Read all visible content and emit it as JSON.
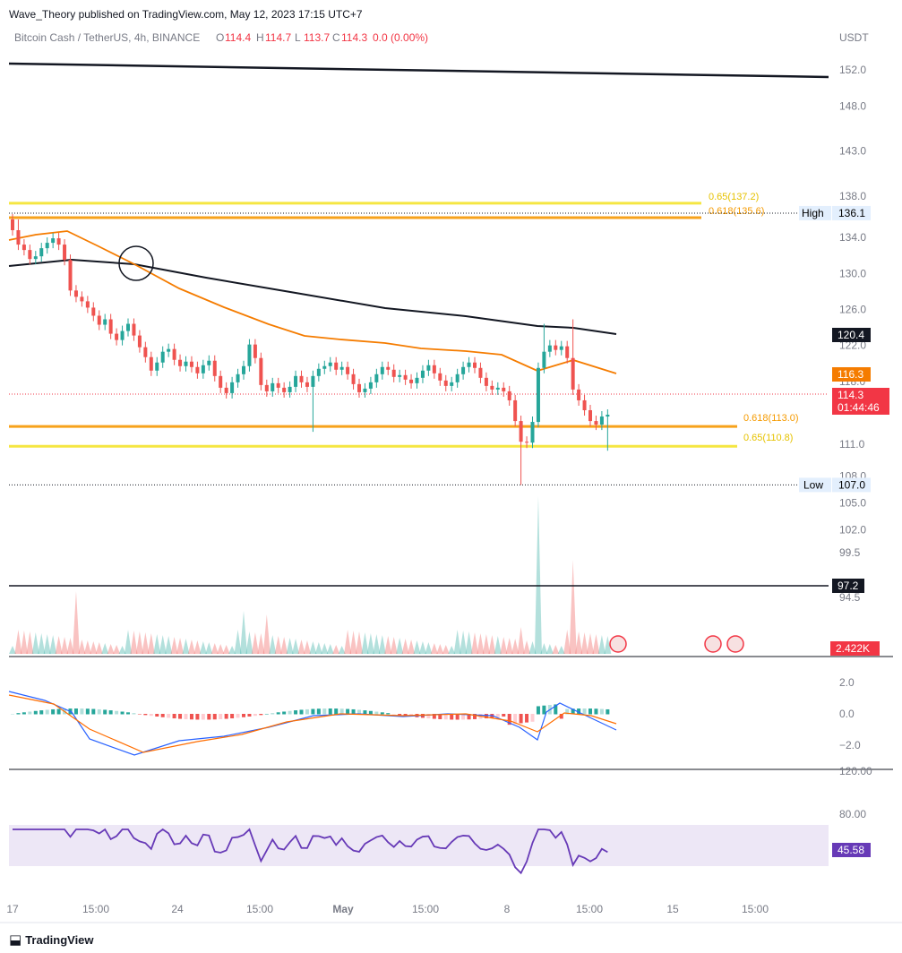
{
  "publisher_line": "Wave_Theory published on TradingView.com, May 12, 2023 17:15 UTC+7",
  "footer_brand": "TradingView",
  "footer_icon": "tradingview-logo-icon",
  "legend": {
    "symbol": "Bitcoin Cash / TetherUS, 4h, BINANCE",
    "o_label": "O",
    "o": "114.4",
    "h_label": "H",
    "h": "114.7",
    "l_label": "L",
    "l": "113.7",
    "c_label": "C",
    "c": "114.3",
    "change": "0.0 (0.00%)"
  },
  "colors": {
    "up": "#26a69a",
    "down": "#ef5350",
    "ema_fast": "#f57c00",
    "ema_slow": "#131722",
    "fib_orange": "#f7a21b",
    "fib_yellow": "#f5e642",
    "macd": "#2962ff",
    "signal": "#ff6d00",
    "rsi": "#673ab7",
    "rsi_band": "#ede7f6",
    "accent_red": "#f23645"
  },
  "chart_data": [
    {
      "type": "line",
      "name": "price-pane",
      "currency": "USDT",
      "ylim": [
        92,
        155
      ],
      "y_ticks": [
        152.0,
        148.0,
        143.0,
        138.0,
        134.0,
        130.0,
        126.0,
        122.0,
        118.0,
        111.0,
        108.0,
        105.0,
        102.0,
        99.5,
        94.5
      ],
      "x_ticks": [
        "17",
        "15:00",
        "24",
        "15:00",
        "May",
        "15:00",
        "8",
        "15:00",
        "15",
        "15:00"
      ],
      "price_series": [
        134.8,
        133.2,
        132.6,
        131.6,
        131.9,
        132.8,
        133.4,
        133.9,
        133.2,
        131.5,
        128.1,
        127.4,
        126.9,
        126.2,
        125.3,
        124.3,
        124.9,
        123.3,
        122.6,
        123.6,
        124.4,
        123.1,
        121.8,
        120.7,
        119.2,
        120.1,
        121.3,
        121.6,
        120.4,
        119.7,
        120.2,
        119.6,
        118.9,
        119.8,
        120.3,
        118.6,
        117.3,
        116.7,
        117.9,
        118.8,
        119.7,
        122.1,
        120.6,
        117.6,
        116.9,
        117.8,
        117.3,
        116.8,
        117.4,
        118.6,
        117.9,
        117.4,
        118.6,
        119.4,
        119.7,
        120.1,
        119.3,
        119.6,
        118.8,
        117.7,
        116.8,
        117.2,
        117.9,
        118.8,
        119.6,
        119.3,
        118.5,
        118.7,
        118.2,
        117.8,
        118.4,
        119.2,
        119.8,
        118.9,
        118.1,
        117.5,
        117.9,
        118.8,
        119.6,
        120.1,
        119.5,
        118.4,
        117.5,
        117.1,
        117.3,
        116.9,
        115.9,
        113.6,
        111.3,
        111.2,
        113.5,
        119.5,
        121.3,
        122.0,
        121.5,
        121.9,
        120.6,
        117.1,
        115.9,
        114.8,
        113.6,
        113.2,
        114.1,
        114.3
      ],
      "high": 136.1,
      "low": 107.0,
      "spike_highs": [
        [
          92,
          124.4
        ],
        [
          97,
          124.9
        ]
      ],
      "spike_lows": [
        [
          52,
          112.4
        ],
        [
          88,
          107.0
        ],
        [
          103,
          110.3
        ]
      ],
      "ema_fast_label": "116.3",
      "ema_fast_endpoints": [
        131.2,
        116.3
      ],
      "ema_slow_label": "120.4",
      "ema_slow_endpoints": [
        128.2,
        120.4
      ],
      "horizontal_lines": [
        {
          "label": "",
          "value": 97.2,
          "price_label": "97.2",
          "color": "#131722"
        }
      ],
      "fib_levels": [
        {
          "label": "0.65(137.2)",
          "value": 137.2,
          "color": "#f5e642"
        },
        {
          "label": "0.618(135.6)",
          "value": 135.6,
          "color": "#f7a21b"
        },
        {
          "label": "0.618(113.0)",
          "value": 113.0,
          "color": "#f7a21b"
        },
        {
          "label": "0.65(110.8)",
          "value": 110.8,
          "color": "#f5e642"
        }
      ],
      "trendline": {
        "start": 151.0,
        "end": 149.4
      },
      "high_label": "High",
      "high_value": "136.1",
      "low_label": "Low",
      "low_value": "107.0",
      "last_price": "114.3",
      "countdown": "01:44:46",
      "volume_label": "2.422K"
    },
    {
      "type": "bar",
      "name": "macd-pane",
      "y_ticks": [
        "2.0",
        "0.0",
        "−2.0"
      ],
      "ylim": [
        -3,
        3
      ]
    },
    {
      "type": "line",
      "name": "rsi-pane",
      "y_ticks": [
        "120.00",
        "80.00"
      ],
      "last_value": "45.58",
      "band": [
        30,
        70
      ]
    }
  ]
}
